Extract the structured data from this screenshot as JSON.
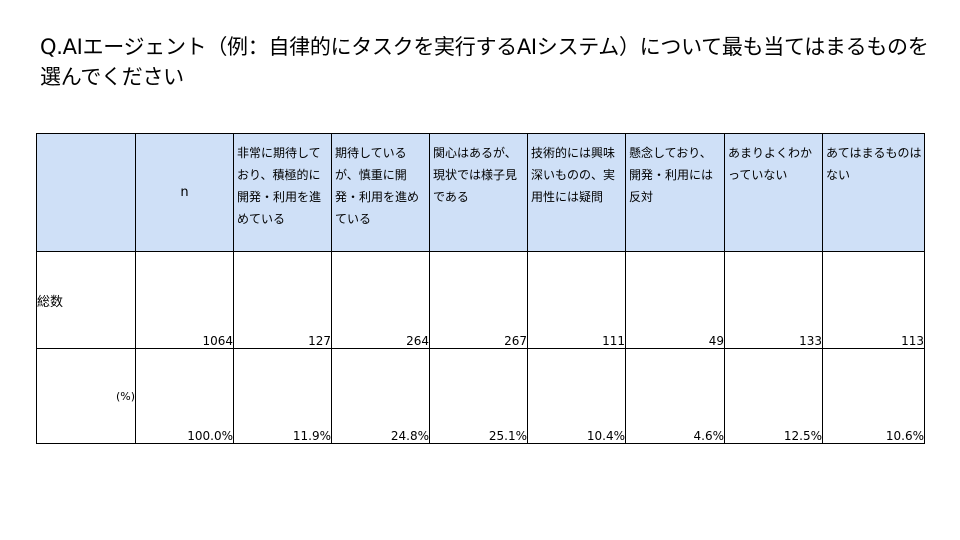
{
  "question": "Q.AIエージェント（例：自律的にタスクを実行するAIシステム）について最も当てはまるものを選んでください",
  "table": {
    "n_header": "n",
    "columns": [
      "非常に期待しており、積極的に開発・利用を進めている",
      "期待しているが、慎重に開発・利用を進めている",
      "関心はあるが、現状では様子見である",
      "技術的には興味深いものの、実用性には疑問",
      "懸念しており、開発・利用には反対",
      "あまりよくわかっていない",
      "あてはまるものはない"
    ],
    "count_row": {
      "label": "総数",
      "n": "1064",
      "values": [
        "127",
        "264",
        "267",
        "111",
        "49",
        "133",
        "113"
      ]
    },
    "pct_row": {
      "label": "(%)",
      "n": "100.0%",
      "values": [
        "11.9%",
        "24.8%",
        "25.1%",
        "10.4%",
        "4.6%",
        "12.5%",
        "10.6%"
      ]
    }
  }
}
